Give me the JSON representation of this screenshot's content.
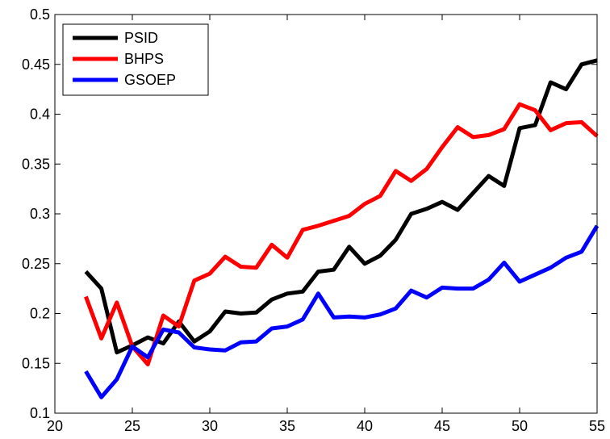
{
  "chart_data": {
    "type": "line",
    "title": "",
    "xlabel": "",
    "ylabel": "",
    "xlim": [
      20,
      55
    ],
    "ylim": [
      0.1,
      0.5
    ],
    "x_ticks": [
      20,
      25,
      30,
      35,
      40,
      45,
      50,
      55
    ],
    "y_ticks": [
      0.1,
      0.15,
      0.2,
      0.25,
      0.3,
      0.35,
      0.4,
      0.45,
      0.5
    ],
    "x_tick_labels": [
      "20",
      "25",
      "30",
      "35",
      "40",
      "45",
      "50",
      "55"
    ],
    "y_tick_labels": [
      "0.1",
      "0.15",
      "0.2",
      "0.25",
      "0.3",
      "0.35",
      "0.4",
      "0.45",
      "0.5"
    ],
    "grid": false,
    "legend_position": "top-left",
    "x": [
      22,
      23,
      24,
      25,
      26,
      27,
      28,
      29,
      30,
      31,
      32,
      33,
      34,
      35,
      36,
      37,
      38,
      39,
      40,
      41,
      42,
      43,
      44,
      45,
      46,
      47,
      48,
      49,
      50,
      51,
      52,
      53,
      54,
      55
    ],
    "series": [
      {
        "name": "PSID",
        "color": "#000000",
        "values": [
          0.242,
          0.225,
          0.161,
          0.168,
          0.176,
          0.17,
          0.192,
          0.172,
          0.182,
          0.202,
          0.2,
          0.201,
          0.214,
          0.22,
          0.222,
          0.242,
          0.244,
          0.267,
          0.25,
          0.258,
          0.274,
          0.3,
          0.305,
          0.312,
          0.304,
          0.321,
          0.338,
          0.328,
          0.386,
          0.389,
          0.432,
          0.425,
          0.45,
          0.454
        ]
      },
      {
        "name": "BHPS",
        "color": "#ff0000",
        "values": [
          0.217,
          0.175,
          0.211,
          0.167,
          0.149,
          0.198,
          0.187,
          0.233,
          0.24,
          0.257,
          0.247,
          0.246,
          0.269,
          0.256,
          0.284,
          0.288,
          0.293,
          0.298,
          0.31,
          0.318,
          0.343,
          0.333,
          0.345,
          0.367,
          0.387,
          0.377,
          0.379,
          0.385,
          0.41,
          0.404,
          0.384,
          0.391,
          0.392,
          0.378
        ]
      },
      {
        "name": "GSOEP",
        "color": "#0000ff",
        "values": [
          0.142,
          0.116,
          0.134,
          0.167,
          0.156,
          0.184,
          0.181,
          0.166,
          0.164,
          0.163,
          0.171,
          0.172,
          0.185,
          0.187,
          0.194,
          0.22,
          0.196,
          0.197,
          0.196,
          0.199,
          0.205,
          0.223,
          0.216,
          0.226,
          0.225,
          0.225,
          0.234,
          0.251,
          0.232,
          0.239,
          0.246,
          0.256,
          0.262,
          0.288
        ]
      }
    ]
  }
}
